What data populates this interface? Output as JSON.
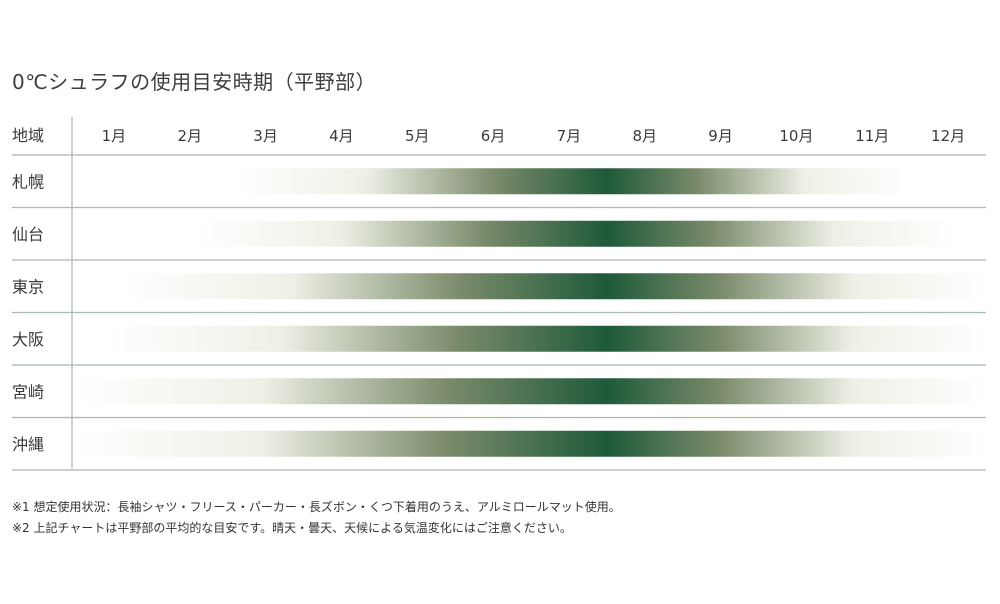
{
  "title": "0℃シュラフの使用目安時期（平野部）",
  "colors": {
    "peak": "#1e5a3a",
    "mid": "#7a8b6a",
    "light": "#eef0e6",
    "rule": "#a9b9ac",
    "text": "#3a3a3a"
  },
  "chart_data": {
    "type": "heatmap",
    "title": "0℃シュラフの使用目安時期（平野部）",
    "row_header": "地域",
    "columns": [
      "1月",
      "2月",
      "3月",
      "4月",
      "5月",
      "6月",
      "7月",
      "8月",
      "9月",
      "10月",
      "11月",
      "12月"
    ],
    "x_range_months": [
      0.5,
      12.5
    ],
    "rows": [
      {
        "label": "札幌",
        "start_month": 2.6,
        "peak_month": 7.5,
        "end_month": 11.5
      },
      {
        "label": "仙台",
        "start_month": 2.1,
        "peak_month": 7.5,
        "end_month": 12.1
      },
      {
        "label": "東京",
        "start_month": 1.1,
        "peak_month": 7.5,
        "end_month": 12.5
      },
      {
        "label": "大阪",
        "start_month": 0.9,
        "peak_month": 7.5,
        "end_month": 12.5
      },
      {
        "label": "宮崎",
        "start_month": 0.5,
        "peak_month": 7.5,
        "end_month": 12.5
      },
      {
        "label": "沖縄",
        "start_month": 0.5,
        "peak_month": 7.5,
        "end_month": 12.5
      }
    ]
  },
  "notes": [
    "※1 想定使用状況：長袖シャツ・フリース・パーカー・長ズボン・くつ下着用のうえ、アルミロールマット使用。",
    "※2 上記チャートは平野部の平均的な目安です。晴天・曇天、天候による気温変化にはご注意ください。"
  ]
}
